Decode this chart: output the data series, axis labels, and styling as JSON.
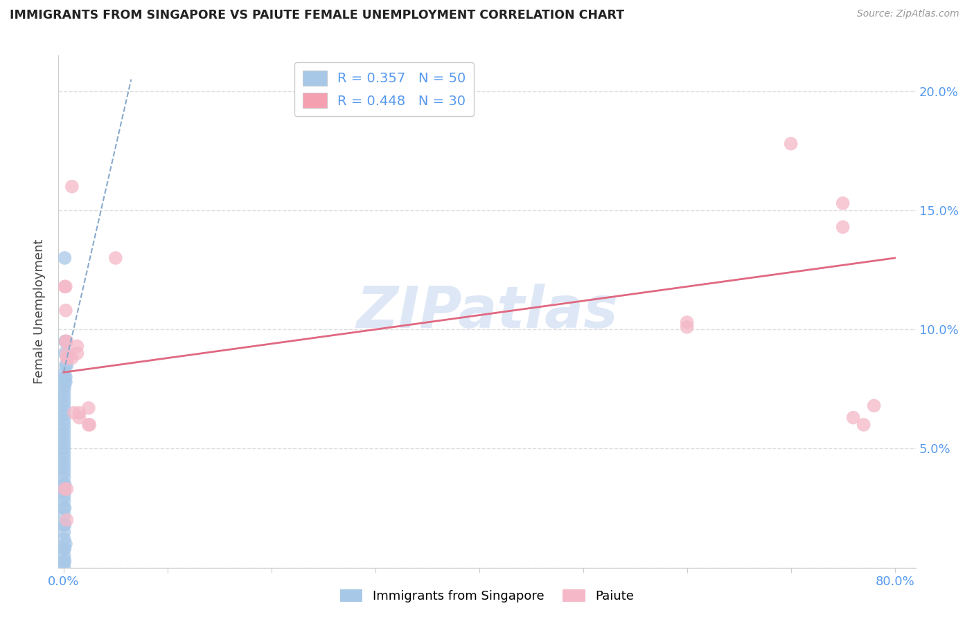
{
  "title": "IMMIGRANTS FROM SINGAPORE VS PAIUTE FEMALE UNEMPLOYMENT CORRELATION CHART",
  "source": "Source: ZipAtlas.com",
  "ylabel": "Female Unemployment",
  "y_ticks": [
    0.0,
    0.05,
    0.1,
    0.15,
    0.2
  ],
  "y_tick_labels": [
    "",
    "5.0%",
    "10.0%",
    "15.0%",
    "20.0%"
  ],
  "x_ticks": [
    0.0,
    0.1,
    0.2,
    0.3,
    0.4,
    0.5,
    0.6,
    0.7,
    0.8
  ],
  "x_tick_labels": [
    "0.0%",
    "",
    "",
    "",
    "",
    "",
    "",
    "",
    "80.0%"
  ],
  "legend_entries": [
    {
      "label": "R = 0.357   N = 50",
      "color": "#a8c8e8"
    },
    {
      "label": "R = 0.448   N = 30",
      "color": "#f4a0b0"
    }
  ],
  "singapore_scatter": [
    [
      0.001,
      0.13
    ],
    [
      0.0015,
      0.095
    ],
    [
      0.002,
      0.095
    ],
    [
      0.001,
      0.09
    ],
    [
      0.002,
      0.085
    ],
    [
      0.003,
      0.085
    ],
    [
      0.001,
      0.082
    ],
    [
      0.001,
      0.08
    ],
    [
      0.002,
      0.08
    ],
    [
      0.001,
      0.078
    ],
    [
      0.002,
      0.078
    ],
    [
      0.001,
      0.076
    ],
    [
      0.0005,
      0.074
    ],
    [
      0.0005,
      0.072
    ],
    [
      0.0005,
      0.07
    ],
    [
      0.0005,
      0.068
    ],
    [
      0.0005,
      0.066
    ],
    [
      0.0005,
      0.064
    ],
    [
      0.0005,
      0.062
    ],
    [
      0.0005,
      0.06
    ],
    [
      0.0005,
      0.058
    ],
    [
      0.0005,
      0.056
    ],
    [
      0.0005,
      0.054
    ],
    [
      0.0005,
      0.052
    ],
    [
      0.0005,
      0.05
    ],
    [
      0.0005,
      0.048
    ],
    [
      0.0005,
      0.046
    ],
    [
      0.0005,
      0.044
    ],
    [
      0.0005,
      0.042
    ],
    [
      0.0005,
      0.04
    ],
    [
      0.0005,
      0.038
    ],
    [
      0.0005,
      0.035
    ],
    [
      0.0005,
      0.032
    ],
    [
      0.0005,
      0.03
    ],
    [
      0.0005,
      0.028
    ],
    [
      0.0005,
      0.025
    ],
    [
      0.0005,
      0.022
    ],
    [
      0.0005,
      0.018
    ],
    [
      0.0005,
      0.015
    ],
    [
      0.0005,
      0.012
    ],
    [
      0.0005,
      0.008
    ],
    [
      0.001,
      0.035
    ],
    [
      0.001,
      0.025
    ],
    [
      0.001,
      0.018
    ],
    [
      0.001,
      0.008
    ],
    [
      0.002,
      0.01
    ],
    [
      0.001,
      0.003
    ],
    [
      0.0005,
      0.005
    ],
    [
      0.0005,
      0.002
    ],
    [
      0.0005,
      0.0
    ]
  ],
  "paiute_scatter": [
    [
      0.001,
      0.118
    ],
    [
      0.002,
      0.118
    ],
    [
      0.002,
      0.108
    ],
    [
      0.002,
      0.095
    ],
    [
      0.003,
      0.095
    ],
    [
      0.003,
      0.09
    ],
    [
      0.003,
      0.088
    ],
    [
      0.004,
      0.088
    ],
    [
      0.008,
      0.088
    ],
    [
      0.008,
      0.16
    ],
    [
      0.01,
      0.065
    ],
    [
      0.013,
      0.093
    ],
    [
      0.013,
      0.09
    ],
    [
      0.015,
      0.065
    ],
    [
      0.015,
      0.063
    ],
    [
      0.024,
      0.067
    ],
    [
      0.024,
      0.06
    ],
    [
      0.025,
      0.06
    ],
    [
      0.05,
      0.13
    ],
    [
      0.001,
      0.033
    ],
    [
      0.003,
      0.033
    ],
    [
      0.6,
      0.103
    ],
    [
      0.6,
      0.101
    ],
    [
      0.7,
      0.178
    ],
    [
      0.75,
      0.153
    ],
    [
      0.75,
      0.143
    ],
    [
      0.76,
      0.063
    ],
    [
      0.77,
      0.06
    ],
    [
      0.78,
      0.068
    ],
    [
      0.003,
      0.02
    ]
  ],
  "singapore_trend_x": [
    0.0,
    0.065
  ],
  "singapore_trend_y": [
    0.082,
    0.205
  ],
  "paiute_trend_x": [
    0.0,
    0.8
  ],
  "paiute_trend_y": [
    0.082,
    0.13
  ],
  "scatter_color_singapore": "#a8c8e8",
  "scatter_color_paiute": "#f4b8c8",
  "trend_color_singapore": "#88aacc",
  "trend_color_paiute": "#e06880",
  "background_color": "#ffffff",
  "watermark": "ZIPatlas",
  "watermark_color": "#c8d8f0",
  "ylim": [
    0.0,
    0.215
  ],
  "xlim": [
    -0.005,
    0.82
  ]
}
